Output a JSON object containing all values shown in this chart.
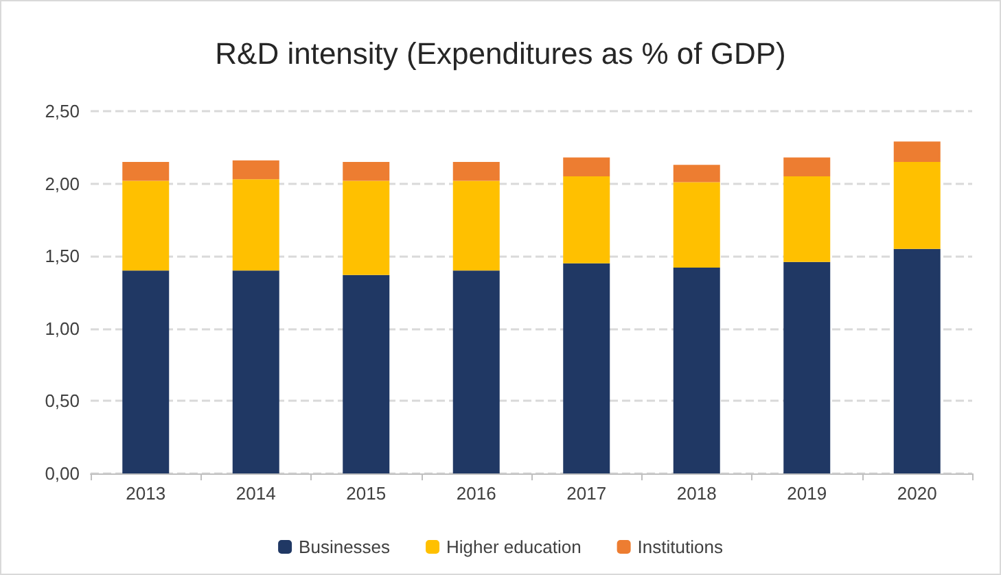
{
  "chart_data": {
    "type": "bar",
    "title": "R&D intensity (Expenditures as % of GDP)",
    "stacked": true,
    "categories": [
      "2013",
      "2014",
      "2015",
      "2016",
      "2017",
      "2018",
      "2019",
      "2020"
    ],
    "series": [
      {
        "name": "Businesses",
        "color": "#203864",
        "values": [
          1.4,
          1.4,
          1.37,
          1.4,
          1.45,
          1.42,
          1.46,
          1.55
        ]
      },
      {
        "name": "Higher education",
        "color": "#ffc000",
        "values": [
          0.62,
          0.63,
          0.65,
          0.62,
          0.6,
          0.59,
          0.59,
          0.6
        ]
      },
      {
        "name": "Institutions",
        "color": "#ed7d31",
        "values": [
          0.13,
          0.13,
          0.13,
          0.13,
          0.13,
          0.12,
          0.13,
          0.14
        ]
      }
    ],
    "ylim": [
      0,
      2.5
    ],
    "yticks": [
      {
        "value": 0,
        "label": "0,00"
      },
      {
        "value": 0.5,
        "label": "0,50"
      },
      {
        "value": 1,
        "label": "1,00"
      },
      {
        "value": 1.5,
        "label": "1,50"
      },
      {
        "value": 2,
        "label": "2,00"
      },
      {
        "value": 2.5,
        "label": "2,50"
      }
    ],
    "grid": "y",
    "legend": "bottom"
  }
}
